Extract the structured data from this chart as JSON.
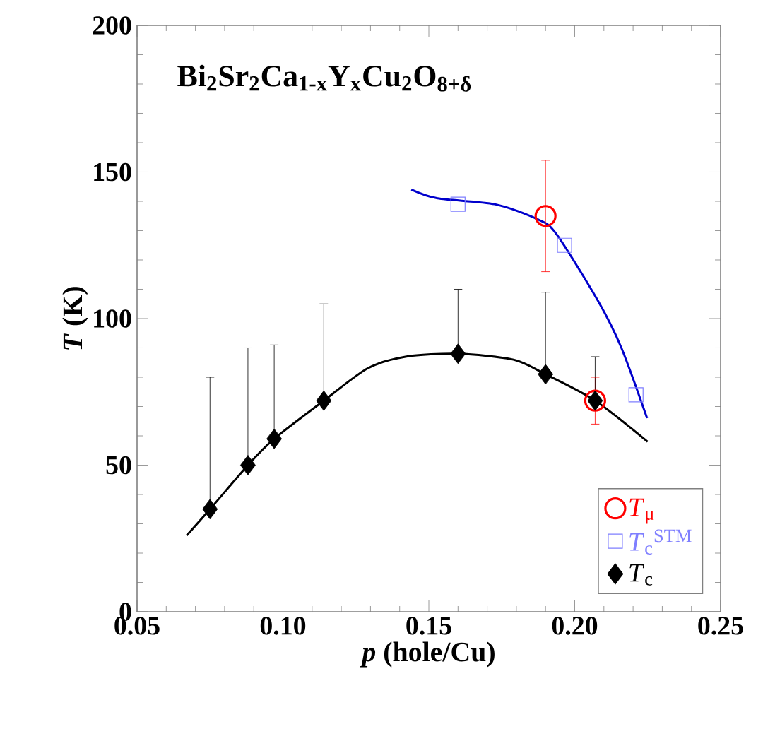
{
  "chart_data": {
    "type": "scatter",
    "title": "Bi$_{2}$Sr$_{2}$Ca$_{1-x}$Y$_{x}$Cu$_{2}$O$_{8+δ}$",
    "xlabel": "*p* (hole/Cu)",
    "ylabel": "*T* (K)",
    "xlim": [
      0.05,
      0.25
    ],
    "ylim": [
      0,
      200
    ],
    "xticks": [
      0.05,
      {
        "value": 0.1,
        "label": "0.10"
      },
      0.15,
      {
        "value": 0.2,
        "label": "0.20"
      },
      0.25
    ],
    "yticks": [
      0,
      50,
      100,
      150,
      200
    ],
    "legend": "bottom right",
    "grid": false,
    "series": [
      {
        "type": "line",
        "color": "#0000cc",
        "x": [
          0.144,
          0.153,
          0.1726,
          0.187,
          0.1936,
          0.208,
          0.216,
          0.2248
        ],
        "values": [
          144,
          141,
          139,
          134,
          129,
          106,
          90,
          66
        ]
      },
      {
        "type": "line",
        "color": "#000000",
        "x": [
          0.067,
          0.075,
          0.088,
          0.097,
          0.114,
          0.129,
          0.142,
          0.16,
          0.179,
          0.19,
          0.207,
          0.225
        ],
        "values": [
          26,
          35,
          50,
          59,
          72,
          83,
          87,
          88,
          86,
          81,
          72,
          58
        ]
      },
      {
        "name": "*T*$_{μ}$",
        "marker": "circle",
        "color": "#ff0000",
        "x": [
          0.19,
          0.207
        ],
        "values": [
          135,
          72
        ],
        "errors": [
          [
            116,
            154
          ],
          [
            64,
            80
          ]
        ]
      },
      {
        "name": "*T*$_{c}$$^{STM}$",
        "marker": "square",
        "color": "#7f7fff",
        "x": [
          0.16,
          0.1965,
          0.221
        ],
        "values": [
          139,
          125,
          74
        ]
      },
      {
        "name": "*T*$_{c}$",
        "marker": "diamond",
        "color": "#000000",
        "x": [
          0.075,
          0.088,
          0.097,
          0.114,
          0.16,
          0.19,
          0.207
        ],
        "values": [
          35,
          50,
          59,
          72,
          88,
          81,
          72
        ],
        "errors": [
          [
            35,
            80
          ],
          [
            50,
            90
          ],
          [
            59,
            91
          ],
          [
            72,
            105
          ],
          [
            88,
            110
          ],
          [
            81,
            109
          ],
          [
            72,
            87
          ]
        ]
      }
    ]
  }
}
